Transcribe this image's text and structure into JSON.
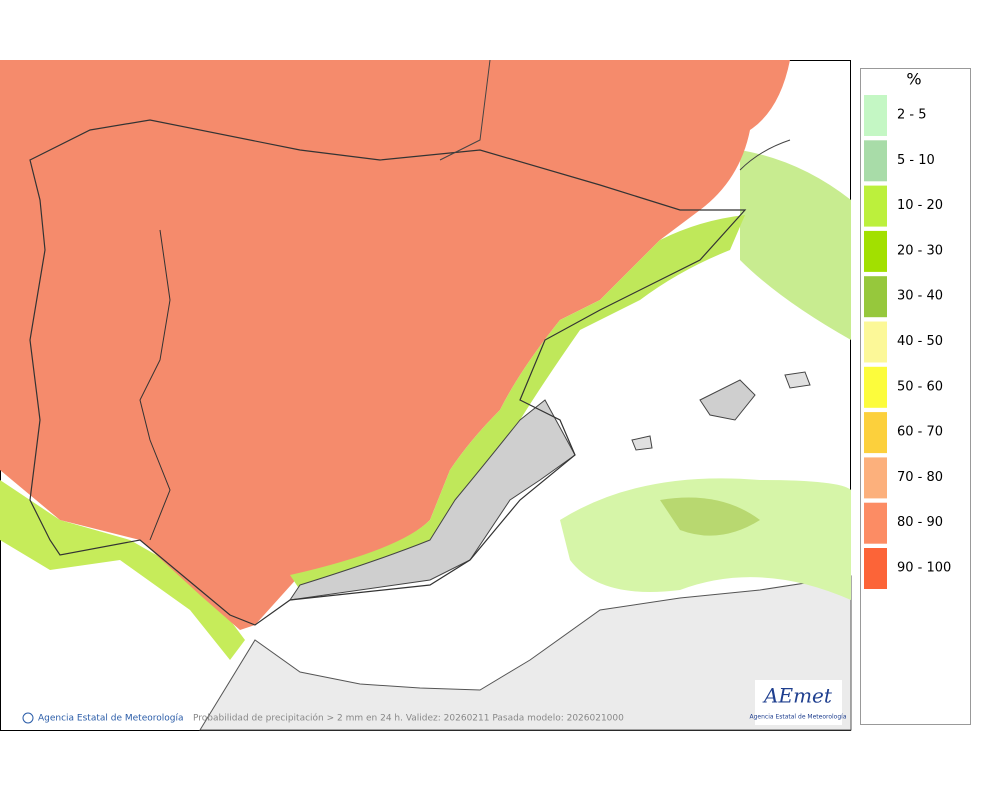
{
  "map": {
    "footer_credit": "Agencia Estatal de Meteorología",
    "caption": "Probabilidad de precipitación > 2 mm en 24 h. Validez: 20260211 Pasada modelo: 2026021000",
    "logo": {
      "name": "AEmet",
      "subtitle": "Agencia Estatal de Meteorología"
    }
  },
  "legend": {
    "title": "%",
    "items": [
      {
        "label": "2 - 5",
        "color": "#c4f7c4"
      },
      {
        "label": "5 - 10",
        "color": "#a8dca8"
      },
      {
        "label": "10 - 20",
        "color": "#bcf03c"
      },
      {
        "label": "20 - 30",
        "color": "#a2e000"
      },
      {
        "label": "30 - 40",
        "color": "#96c83c"
      },
      {
        "label": "40 - 50",
        "color": "#fcf898"
      },
      {
        "label": "50 - 60",
        "color": "#fcfc3c"
      },
      {
        "label": "60 - 70",
        "color": "#fcd03c"
      },
      {
        "label": "70 - 80",
        "color": "#fcb07c"
      },
      {
        "label": "80 - 90",
        "color": "#fc8c64"
      },
      {
        "label": "90 - 100",
        "color": "#fc6438"
      }
    ]
  }
}
